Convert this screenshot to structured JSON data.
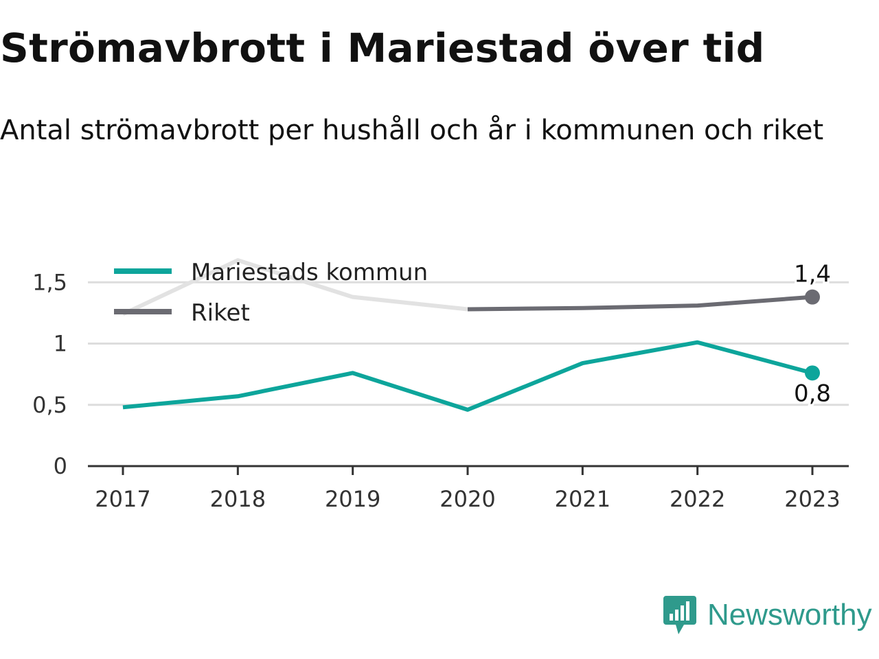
{
  "title": "Strömavbrott i Mariestad över tid",
  "subtitle": "Antal strömavbrott per hushåll och år i kommunen och riket",
  "brand": {
    "name": "Newsworthy",
    "color": "#2f9a8c"
  },
  "colors": {
    "mariestad": "#0da59b",
    "riket": "#6b6b72",
    "riket_faded": "#e2e2e2",
    "grid": "#dddddd",
    "axis": "#333333"
  },
  "chart_data": {
    "type": "line",
    "title": "Strömavbrott i Mariestad över tid",
    "subtitle": "Antal strömavbrott per hushåll och år i kommunen och riket",
    "categories": [
      "2017",
      "2018",
      "2019",
      "2020",
      "2021",
      "2022",
      "2023"
    ],
    "series": [
      {
        "name": "Mariestads kommun",
        "values": [
          0.48,
          0.57,
          0.76,
          0.46,
          0.84,
          1.01,
          0.76
        ]
      },
      {
        "name": "Riket",
        "values": [
          1.24,
          1.68,
          1.38,
          1.28,
          1.29,
          1.31,
          1.38
        ]
      }
    ],
    "yticks": [
      0,
      0.5,
      1,
      1.5
    ],
    "ytick_labels": [
      "0",
      "0,5",
      "1",
      "1,5"
    ],
    "ylim": [
      0,
      1.75
    ],
    "grid": true,
    "legend": "top-left",
    "end_labels": [
      "0,8",
      "1,4"
    ]
  }
}
